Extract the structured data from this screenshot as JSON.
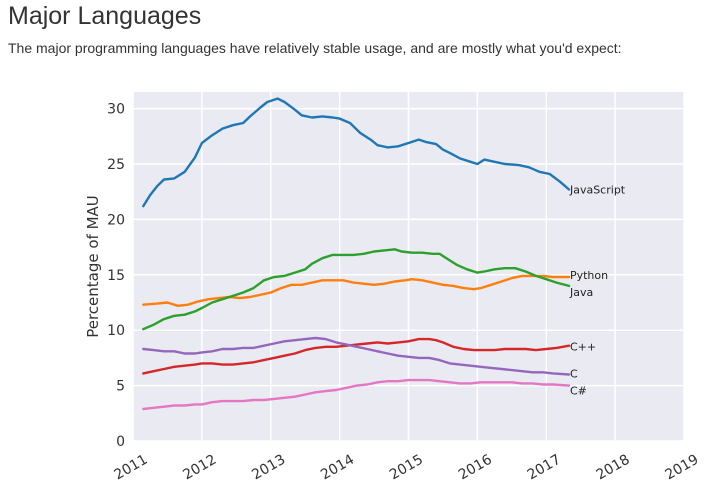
{
  "page": {
    "title": "Major Languages",
    "intro": "The major programming languages have relatively stable usage, and are mostly what you'd expect:"
  },
  "chart_data": {
    "type": "line",
    "title": "",
    "xlabel": "",
    "ylabel": "Percentage of MAU",
    "xlim": [
      2011.0,
      2019.0
    ],
    "ylim": [
      0,
      31.5
    ],
    "xticks": [
      2011,
      2012,
      2013,
      2014,
      2015,
      2016,
      2017,
      2018,
      2019
    ],
    "yticks": [
      0,
      5,
      10,
      15,
      20,
      25,
      30
    ],
    "grid": true,
    "background": "#eaeaf2",
    "legend": "inline labels at line ends",
    "series": [
      {
        "name": "JavaScript",
        "color": "#1f77b4",
        "points": [
          [
            2011.15,
            21.2
          ],
          [
            2011.25,
            22.2
          ],
          [
            2011.35,
            23.0
          ],
          [
            2011.45,
            23.6
          ],
          [
            2011.6,
            23.7
          ],
          [
            2011.75,
            24.3
          ],
          [
            2011.9,
            25.6
          ],
          [
            2012.0,
            26.9
          ],
          [
            2012.15,
            27.6
          ],
          [
            2012.3,
            28.2
          ],
          [
            2012.45,
            28.5
          ],
          [
            2012.6,
            28.7
          ],
          [
            2012.7,
            29.3
          ],
          [
            2012.85,
            30.1
          ],
          [
            2012.95,
            30.6
          ],
          [
            2013.1,
            30.9
          ],
          [
            2013.2,
            30.6
          ],
          [
            2013.35,
            29.9
          ],
          [
            2013.45,
            29.4
          ],
          [
            2013.6,
            29.2
          ],
          [
            2013.75,
            29.3
          ],
          [
            2013.9,
            29.2
          ],
          [
            2014.0,
            29.1
          ],
          [
            2014.15,
            28.7
          ],
          [
            2014.3,
            27.8
          ],
          [
            2014.45,
            27.2
          ],
          [
            2014.55,
            26.7
          ],
          [
            2014.7,
            26.5
          ],
          [
            2014.85,
            26.6
          ],
          [
            2015.0,
            26.9
          ],
          [
            2015.15,
            27.2
          ],
          [
            2015.25,
            27.0
          ],
          [
            2015.4,
            26.8
          ],
          [
            2015.5,
            26.3
          ],
          [
            2015.6,
            26.0
          ],
          [
            2015.75,
            25.5
          ],
          [
            2015.9,
            25.2
          ],
          [
            2016.0,
            25.0
          ],
          [
            2016.1,
            25.4
          ],
          [
            2016.25,
            25.2
          ],
          [
            2016.4,
            25.0
          ],
          [
            2016.6,
            24.9
          ],
          [
            2016.75,
            24.7
          ],
          [
            2016.9,
            24.3
          ],
          [
            2017.05,
            24.1
          ],
          [
            2017.2,
            23.4
          ],
          [
            2017.33,
            22.7
          ]
        ]
      },
      {
        "name": "Python",
        "color": "#ff7f0e",
        "points": [
          [
            2011.15,
            12.3
          ],
          [
            2011.35,
            12.4
          ],
          [
            2011.5,
            12.5
          ],
          [
            2011.65,
            12.2
          ],
          [
            2011.8,
            12.3
          ],
          [
            2011.95,
            12.6
          ],
          [
            2012.1,
            12.8
          ],
          [
            2012.25,
            12.9
          ],
          [
            2012.4,
            13.0
          ],
          [
            2012.55,
            12.9
          ],
          [
            2012.7,
            13.0
          ],
          [
            2012.85,
            13.2
          ],
          [
            2013.0,
            13.4
          ],
          [
            2013.15,
            13.8
          ],
          [
            2013.3,
            14.1
          ],
          [
            2013.45,
            14.1
          ],
          [
            2013.6,
            14.3
          ],
          [
            2013.75,
            14.5
          ],
          [
            2013.9,
            14.5
          ],
          [
            2014.05,
            14.5
          ],
          [
            2014.2,
            14.3
          ],
          [
            2014.35,
            14.2
          ],
          [
            2014.5,
            14.1
          ],
          [
            2014.65,
            14.2
          ],
          [
            2014.8,
            14.4
          ],
          [
            2014.95,
            14.5
          ],
          [
            2015.05,
            14.6
          ],
          [
            2015.2,
            14.5
          ],
          [
            2015.35,
            14.3
          ],
          [
            2015.5,
            14.1
          ],
          [
            2015.65,
            14.0
          ],
          [
            2015.8,
            13.8
          ],
          [
            2015.95,
            13.7
          ],
          [
            2016.05,
            13.8
          ],
          [
            2016.2,
            14.1
          ],
          [
            2016.35,
            14.4
          ],
          [
            2016.5,
            14.7
          ],
          [
            2016.65,
            14.9
          ],
          [
            2016.8,
            14.9
          ],
          [
            2016.95,
            14.9
          ],
          [
            2017.1,
            14.8
          ],
          [
            2017.33,
            14.8
          ]
        ]
      },
      {
        "name": "Java",
        "color": "#2ca02c",
        "points": [
          [
            2011.15,
            10.1
          ],
          [
            2011.3,
            10.5
          ],
          [
            2011.45,
            11.0
          ],
          [
            2011.6,
            11.3
          ],
          [
            2011.75,
            11.4
          ],
          [
            2011.9,
            11.7
          ],
          [
            2012.0,
            12.0
          ],
          [
            2012.15,
            12.5
          ],
          [
            2012.3,
            12.8
          ],
          [
            2012.45,
            13.1
          ],
          [
            2012.6,
            13.4
          ],
          [
            2012.75,
            13.8
          ],
          [
            2012.9,
            14.5
          ],
          [
            2013.05,
            14.8
          ],
          [
            2013.2,
            14.9
          ],
          [
            2013.35,
            15.2
          ],
          [
            2013.5,
            15.5
          ],
          [
            2013.6,
            16.0
          ],
          [
            2013.75,
            16.5
          ],
          [
            2013.9,
            16.8
          ],
          [
            2014.05,
            16.8
          ],
          [
            2014.2,
            16.8
          ],
          [
            2014.35,
            16.9
          ],
          [
            2014.5,
            17.1
          ],
          [
            2014.65,
            17.2
          ],
          [
            2014.8,
            17.3
          ],
          [
            2014.9,
            17.1
          ],
          [
            2015.05,
            17.0
          ],
          [
            2015.2,
            17.0
          ],
          [
            2015.35,
            16.9
          ],
          [
            2015.45,
            16.9
          ],
          [
            2015.55,
            16.5
          ],
          [
            2015.7,
            15.9
          ],
          [
            2015.85,
            15.5
          ],
          [
            2016.0,
            15.2
          ],
          [
            2016.1,
            15.3
          ],
          [
            2016.25,
            15.5
          ],
          [
            2016.4,
            15.6
          ],
          [
            2016.55,
            15.6
          ],
          [
            2016.7,
            15.3
          ],
          [
            2016.85,
            14.9
          ],
          [
            2017.0,
            14.6
          ],
          [
            2017.15,
            14.3
          ],
          [
            2017.33,
            14.0
          ]
        ]
      },
      {
        "name": "C++",
        "color": "#d62728",
        "points": [
          [
            2011.15,
            6.1
          ],
          [
            2011.3,
            6.3
          ],
          [
            2011.45,
            6.5
          ],
          [
            2011.6,
            6.7
          ],
          [
            2011.75,
            6.8
          ],
          [
            2011.9,
            6.9
          ],
          [
            2012.0,
            7.0
          ],
          [
            2012.15,
            7.0
          ],
          [
            2012.3,
            6.9
          ],
          [
            2012.45,
            6.9
          ],
          [
            2012.6,
            7.0
          ],
          [
            2012.75,
            7.1
          ],
          [
            2012.9,
            7.3
          ],
          [
            2013.05,
            7.5
          ],
          [
            2013.2,
            7.7
          ],
          [
            2013.35,
            7.9
          ],
          [
            2013.5,
            8.2
          ],
          [
            2013.65,
            8.4
          ],
          [
            2013.8,
            8.5
          ],
          [
            2013.95,
            8.5
          ],
          [
            2014.1,
            8.6
          ],
          [
            2014.25,
            8.7
          ],
          [
            2014.4,
            8.8
          ],
          [
            2014.55,
            8.9
          ],
          [
            2014.7,
            8.8
          ],
          [
            2014.85,
            8.9
          ],
          [
            2015.0,
            9.0
          ],
          [
            2015.15,
            9.2
          ],
          [
            2015.3,
            9.2
          ],
          [
            2015.4,
            9.1
          ],
          [
            2015.5,
            8.9
          ],
          [
            2015.65,
            8.5
          ],
          [
            2015.8,
            8.3
          ],
          [
            2015.95,
            8.2
          ],
          [
            2016.1,
            8.2
          ],
          [
            2016.25,
            8.2
          ],
          [
            2016.4,
            8.3
          ],
          [
            2016.55,
            8.3
          ],
          [
            2016.7,
            8.3
          ],
          [
            2016.85,
            8.2
          ],
          [
            2017.0,
            8.3
          ],
          [
            2017.15,
            8.4
          ],
          [
            2017.33,
            8.6
          ]
        ]
      },
      {
        "name": "C",
        "color": "#9467bd",
        "points": [
          [
            2011.15,
            8.3
          ],
          [
            2011.3,
            8.2
          ],
          [
            2011.45,
            8.1
          ],
          [
            2011.6,
            8.1
          ],
          [
            2011.75,
            7.9
          ],
          [
            2011.9,
            7.9
          ],
          [
            2012.0,
            8.0
          ],
          [
            2012.15,
            8.1
          ],
          [
            2012.3,
            8.3
          ],
          [
            2012.45,
            8.3
          ],
          [
            2012.6,
            8.4
          ],
          [
            2012.75,
            8.4
          ],
          [
            2012.9,
            8.6
          ],
          [
            2013.05,
            8.8
          ],
          [
            2013.2,
            9.0
          ],
          [
            2013.35,
            9.1
          ],
          [
            2013.5,
            9.2
          ],
          [
            2013.65,
            9.3
          ],
          [
            2013.8,
            9.2
          ],
          [
            2013.95,
            8.9
          ],
          [
            2014.1,
            8.7
          ],
          [
            2014.25,
            8.5
          ],
          [
            2014.4,
            8.3
          ],
          [
            2014.55,
            8.1
          ],
          [
            2014.7,
            7.9
          ],
          [
            2014.85,
            7.7
          ],
          [
            2015.0,
            7.6
          ],
          [
            2015.15,
            7.5
          ],
          [
            2015.3,
            7.5
          ],
          [
            2015.45,
            7.3
          ],
          [
            2015.6,
            7.0
          ],
          [
            2015.75,
            6.9
          ],
          [
            2015.9,
            6.8
          ],
          [
            2016.05,
            6.7
          ],
          [
            2016.2,
            6.6
          ],
          [
            2016.35,
            6.5
          ],
          [
            2016.5,
            6.4
          ],
          [
            2016.65,
            6.3
          ],
          [
            2016.8,
            6.2
          ],
          [
            2016.95,
            6.2
          ],
          [
            2017.1,
            6.1
          ],
          [
            2017.33,
            6.0
          ]
        ]
      },
      {
        "name": "C#",
        "color": "#e377c2",
        "points": [
          [
            2011.15,
            2.9
          ],
          [
            2011.3,
            3.0
          ],
          [
            2011.45,
            3.1
          ],
          [
            2011.6,
            3.2
          ],
          [
            2011.75,
            3.2
          ],
          [
            2011.9,
            3.3
          ],
          [
            2012.0,
            3.3
          ],
          [
            2012.15,
            3.5
          ],
          [
            2012.3,
            3.6
          ],
          [
            2012.45,
            3.6
          ],
          [
            2012.6,
            3.6
          ],
          [
            2012.75,
            3.7
          ],
          [
            2012.9,
            3.7
          ],
          [
            2013.05,
            3.8
          ],
          [
            2013.2,
            3.9
          ],
          [
            2013.35,
            4.0
          ],
          [
            2013.5,
            4.2
          ],
          [
            2013.65,
            4.4
          ],
          [
            2013.8,
            4.5
          ],
          [
            2013.95,
            4.6
          ],
          [
            2014.1,
            4.8
          ],
          [
            2014.25,
            5.0
          ],
          [
            2014.4,
            5.1
          ],
          [
            2014.55,
            5.3
          ],
          [
            2014.7,
            5.4
          ],
          [
            2014.85,
            5.4
          ],
          [
            2015.0,
            5.5
          ],
          [
            2015.15,
            5.5
          ],
          [
            2015.3,
            5.5
          ],
          [
            2015.45,
            5.4
          ],
          [
            2015.6,
            5.3
          ],
          [
            2015.75,
            5.2
          ],
          [
            2015.9,
            5.2
          ],
          [
            2016.05,
            5.3
          ],
          [
            2016.2,
            5.3
          ],
          [
            2016.35,
            5.3
          ],
          [
            2016.5,
            5.3
          ],
          [
            2016.65,
            5.2
          ],
          [
            2016.8,
            5.2
          ],
          [
            2016.95,
            5.1
          ],
          [
            2017.1,
            5.1
          ],
          [
            2017.33,
            5.0
          ]
        ]
      }
    ]
  }
}
